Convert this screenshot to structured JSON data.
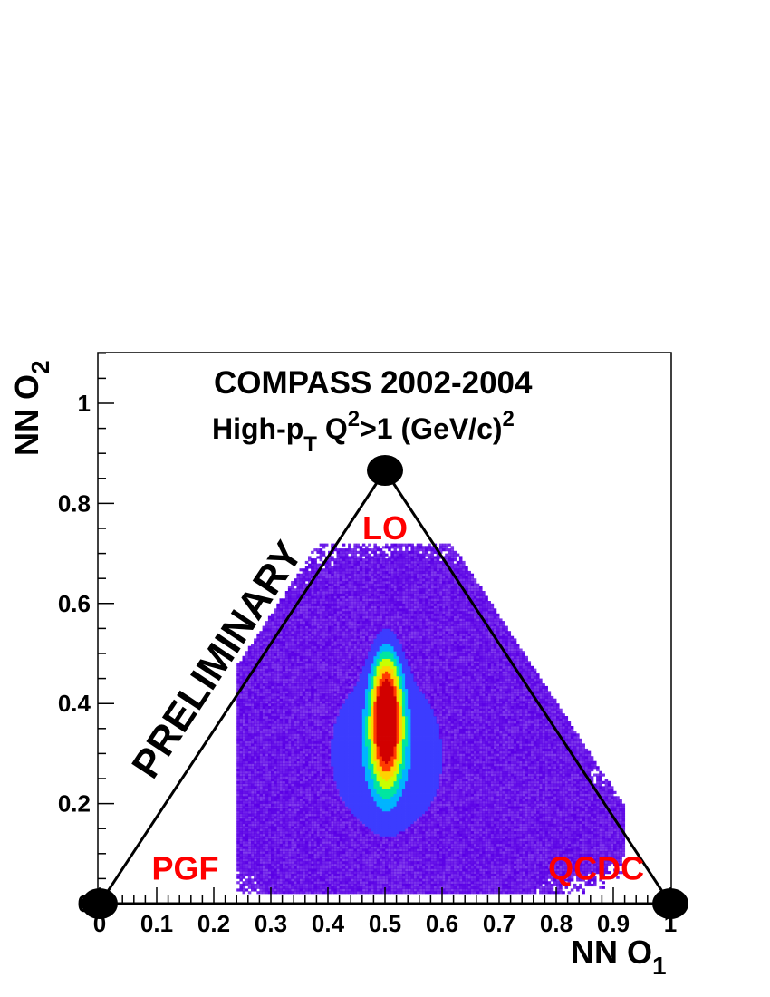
{
  "chart_data": {
    "type": "heatmap",
    "title_line1": "COMPASS 2002-2004",
    "title_line2": {
      "pre": "High-p",
      "sub": "T",
      "mid": " Q",
      "sup1": "2",
      "post": ">1 (GeV/c)",
      "sup2": "2"
    },
    "xlabel": {
      "main": "NN O",
      "sub": "1"
    },
    "ylabel": {
      "main": "NN O",
      "sub": "2"
    },
    "xlim": [
      0,
      1
    ],
    "ylim": [
      0,
      1.1
    ],
    "x_ticks": [
      "0",
      "0.1",
      "0.2",
      "0.3",
      "0.4",
      "0.5",
      "0.6",
      "0.7",
      "0.8",
      "0.9",
      "1"
    ],
    "x_tick_values": [
      0,
      0.1,
      0.2,
      0.3,
      0.4,
      0.5,
      0.6,
      0.7,
      0.8,
      0.9,
      1
    ],
    "y_ticks": [
      "0",
      "0.2",
      "0.4",
      "0.6",
      "0.8",
      "1"
    ],
    "y_tick_values": [
      0,
      0.2,
      0.4,
      0.6,
      0.8,
      1
    ],
    "triangle_vertices": [
      [
        0.0,
        0.0
      ],
      [
        0.5,
        0.866
      ],
      [
        1.0,
        0.0
      ]
    ],
    "regions": [
      {
        "label": "LO",
        "x": 0.5,
        "y": 0.75
      },
      {
        "label": "PGF",
        "x": 0.15,
        "y": 0.07
      },
      {
        "label": "QCDC",
        "x": 0.87,
        "y": 0.07
      }
    ],
    "watermark": "PRELIMINARY",
    "density": {
      "core": {
        "x": 0.5,
        "y": 0.37,
        "sigma_x": 0.018,
        "sigma_y": 0.085
      },
      "broad": {
        "x": 0.5,
        "y": 0.3,
        "sigma_x": 0.1,
        "sigma_y": 0.16
      },
      "qcdc_tail": {
        "x": 0.78,
        "y": 0.15,
        "sigma_x": 0.09,
        "sigma_y": 0.06
      },
      "outer_extent": {
        "x_min": 0.25,
        "x_max": 0.9,
        "y_min": 0.03,
        "y_max": 0.7
      }
    },
    "colors": {
      "region_labels": "#ff0000",
      "palette": [
        "#5a00e6",
        "#3c3cff",
        "#00b4ff",
        "#00e6a0",
        "#c8ff00",
        "#ffd200",
        "#ff3c00",
        "#d20000"
      ]
    },
    "grid": false,
    "legend": "none"
  }
}
